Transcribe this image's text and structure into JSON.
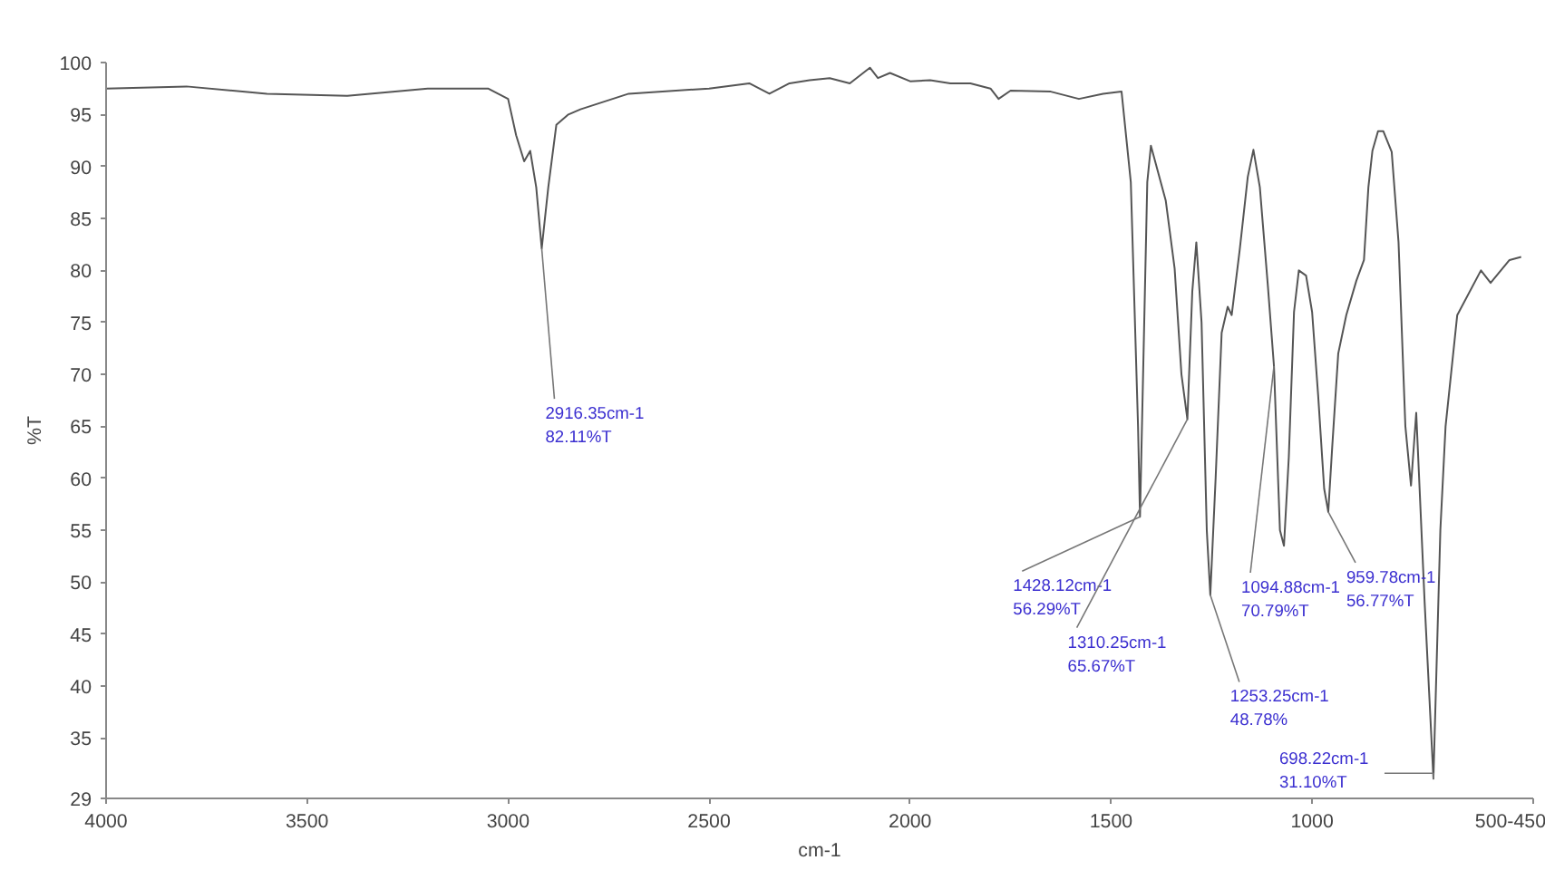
{
  "chart_data": {
    "type": "line",
    "xlabel": "cm-1",
    "ylabel": "%T",
    "x": [
      4000,
      3800,
      3600,
      3400,
      3200,
      3050,
      3000,
      2980,
      2960,
      2945,
      2930,
      2916.35,
      2900,
      2880,
      2850,
      2820,
      2700,
      2500,
      2400,
      2350,
      2300,
      2250,
      2200,
      2150,
      2100,
      2080,
      2050,
      2000,
      1950,
      1900,
      1850,
      1800,
      1780,
      1750,
      1650,
      1580,
      1520,
      1474,
      1451,
      1433,
      1428.12,
      1410,
      1401,
      1364,
      1342,
      1325,
      1310.25,
      1298,
      1288,
      1275,
      1262,
      1253.25,
      1240,
      1225,
      1210,
      1200,
      1180,
      1160,
      1146,
      1130,
      1110,
      1094.88,
      1080,
      1070,
      1058,
      1045,
      1033,
      1015,
      1000,
      985,
      970,
      959.78,
      950,
      935,
      915,
      890,
      871,
      860,
      850,
      836,
      823,
      802,
      785,
      768,
      754,
      741,
      720,
      698.22,
      681,
      668,
      639,
      580,
      556,
      509,
      480
    ],
    "series": [
      {
        "color": "#555555",
        "values": [
          97.5,
          97.7,
          97,
          96.8,
          97.5,
          97.5,
          96.5,
          93,
          90.5,
          91.5,
          88,
          82.11,
          88,
          94,
          95,
          95.5,
          97,
          97.5,
          98,
          97,
          98,
          98.3,
          98.5,
          98,
          99.5,
          98.5,
          99,
          98.2,
          98.3,
          98,
          98,
          97.5,
          96.5,
          97.3,
          97.2,
          96.5,
          97,
          97.2,
          88.5,
          65,
          56.29,
          88.5,
          92,
          86.7,
          80.2,
          70,
          65.67,
          78,
          82.7,
          75,
          55,
          48.78,
          60,
          74,
          76.5,
          75.7,
          82,
          89,
          91.6,
          88,
          78.5,
          70.79,
          55,
          53.5,
          62,
          76,
          80,
          79.5,
          76,
          68,
          59,
          56.77,
          63,
          72,
          75.7,
          79,
          81,
          88,
          91.5,
          93.4,
          93.4,
          91.4,
          82.7,
          65,
          59.3,
          66.3,
          48,
          31.1,
          55,
          65,
          75.7,
          80,
          78.8,
          81,
          81.3
        ]
      }
    ],
    "xlim": [
      4000,
      450
    ],
    "xticks": [
      4000,
      3500,
      3000,
      2500,
      2000,
      1500,
      1000,
      {
        "value": 450,
        "label": "500-450"
      }
    ],
    "ylim": [
      29.2,
      100
    ],
    "yticks": [
      {
        "value": 29.2,
        "label": "29"
      },
      35,
      40,
      45,
      50,
      55,
      60,
      65,
      70,
      75,
      80,
      85,
      90,
      95,
      100
    ],
    "grid": false,
    "annotations": [
      {
        "text": "2916.35cm-1\n82.11%T",
        "x": 2916.35,
        "y": 82.11
      },
      {
        "text": "1428.12cm-1\n56.29%T",
        "x": 1428.12,
        "y": 56.29
      },
      {
        "text": "1310.25cm-1\n65.67%T",
        "x": 1310.25,
        "y": 65.67
      },
      {
        "text": "1253.25cm-1\n48.78%",
        "x": 1253.25,
        "y": 48.78
      },
      {
        "text": "1094.88cm-1\n70.79%T",
        "x": 1094.88,
        "y": 70.79
      },
      {
        "text": "959.78cm-1\n56.77%T",
        "x": 959.78,
        "y": 56.77
      },
      {
        "text": "698.22cm-1\n31.10%T",
        "x": 698.22,
        "y": 31.1
      }
    ]
  }
}
